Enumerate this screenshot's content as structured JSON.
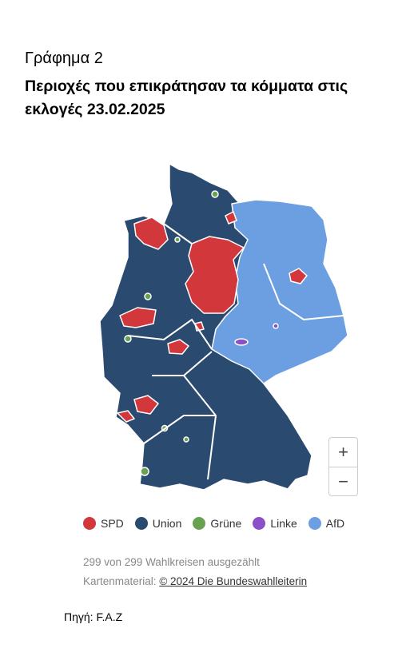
{
  "header": {
    "label": "Γράφημα 2",
    "title": "Περιοχές που επικράτησαν τα κόμματα στις εκλογές 23.02.2025"
  },
  "map": {
    "zoom_in": "+",
    "zoom_out": "−",
    "legend": [
      {
        "name": "SPD",
        "color": "#d2373c"
      },
      {
        "name": "Union",
        "color": "#2b4a6f"
      },
      {
        "name": "Grüne",
        "color": "#68a150"
      },
      {
        "name": "Linke",
        "color": "#8a4fc9"
      },
      {
        "name": "AfD",
        "color": "#6b9fe2"
      }
    ],
    "status": "299 von 299 Wahlkreisen ausgezählt",
    "credit_label": "Kartenmaterial:",
    "credit_link": "© 2024 Die Bundeswahlleiterin"
  },
  "footer": {
    "source": "Πηγή: F.A.Z"
  }
}
